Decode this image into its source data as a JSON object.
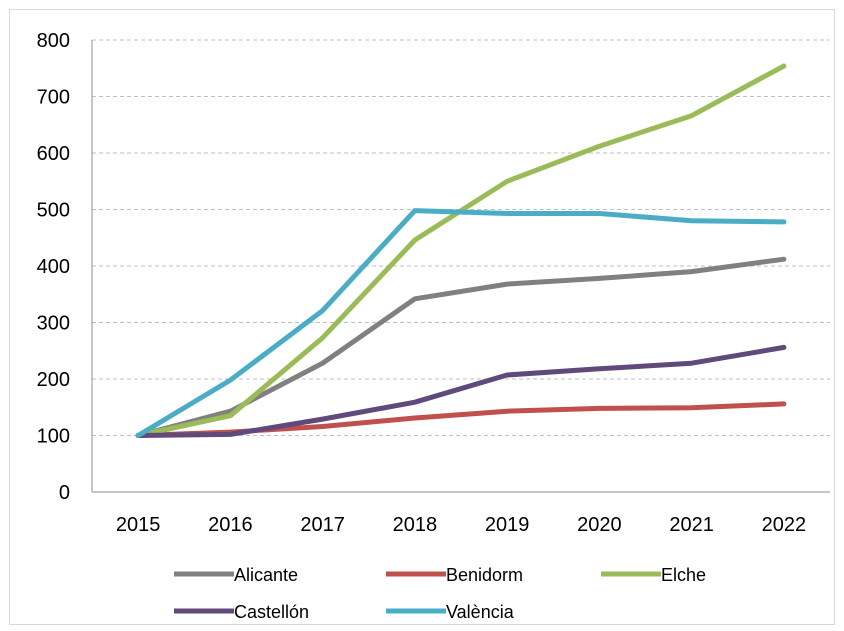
{
  "chart_data": {
    "type": "line",
    "title": "",
    "xlabel": "",
    "ylabel": "",
    "x": [
      "2015",
      "2016",
      "2017",
      "2018",
      "2019",
      "2020",
      "2021",
      "2022"
    ],
    "ylim": [
      0,
      800
    ],
    "yticks": [
      0,
      100,
      200,
      300,
      400,
      500,
      600,
      700,
      800
    ],
    "grid": "horizontal dashed",
    "legend_position": "bottom",
    "series": [
      {
        "name": "Alicante",
        "color": "#808080",
        "values": [
          100,
          143,
          228,
          342,
          368,
          378,
          390,
          412
        ]
      },
      {
        "name": "Benidorm",
        "color": "#c0504d",
        "values": [
          100,
          106,
          116,
          131,
          143,
          148,
          149,
          156
        ]
      },
      {
        "name": "Elche",
        "color": "#9bbb59",
        "values": [
          100,
          135,
          273,
          446,
          550,
          612,
          666,
          754
        ]
      },
      {
        "name": "Castellón",
        "color": "#604a7b",
        "values": [
          100,
          102,
          129,
          159,
          207,
          218,
          228,
          256
        ]
      },
      {
        "name": "València",
        "color": "#4bacc6",
        "values": [
          100,
          198,
          321,
          498,
          493,
          493,
          480,
          478
        ]
      }
    ]
  }
}
